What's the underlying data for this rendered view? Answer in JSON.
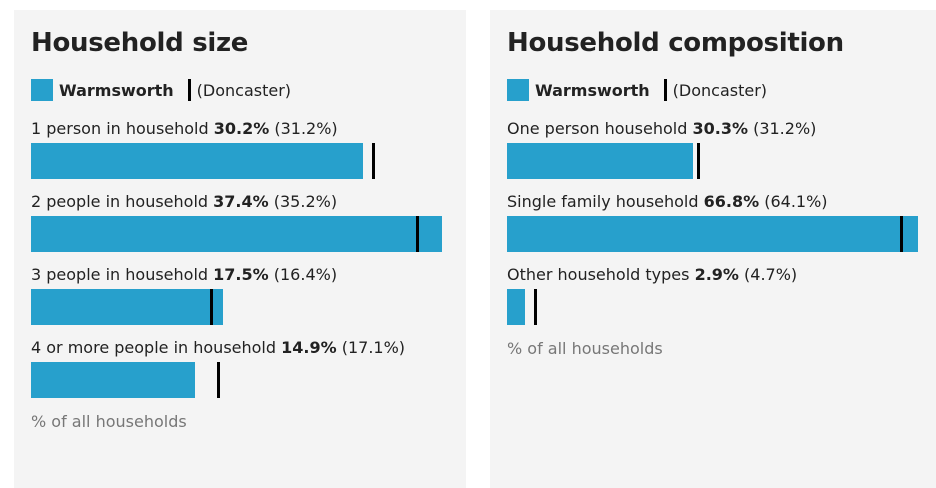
{
  "chart_data": [
    {
      "type": "bar",
      "title": "Household size",
      "categories": [
        "1 person in household",
        "2 people in household",
        "3 people in household",
        "4 or more people in household"
      ],
      "series": [
        {
          "name": "Warmsworth",
          "color": "#27a0cc",
          "values": [
            30.2,
            37.4,
            17.5,
            14.9
          ],
          "value_labels": [
            "30.2%",
            "37.4%",
            "17.5%",
            "14.9%"
          ]
        },
        {
          "name": "(Doncaster)",
          "color": "#000000",
          "values": [
            31.2,
            35.2,
            16.4,
            17.1
          ],
          "value_labels": [
            "(31.2%)",
            "(35.2%)",
            "(16.4%)",
            "(17.1%)"
          ]
        }
      ],
      "axis_label": "% of all households"
    },
    {
      "type": "bar",
      "title": "Household composition",
      "categories": [
        "One person household",
        "Single family household",
        "Other household types"
      ],
      "series": [
        {
          "name": "Warmsworth",
          "color": "#27a0cc",
          "values": [
            30.3,
            66.8,
            2.9
          ],
          "value_labels": [
            "30.3%",
            "66.8%",
            "2.9%"
          ]
        },
        {
          "name": "(Doncaster)",
          "color": "#000000",
          "values": [
            31.2,
            64.1,
            4.7
          ],
          "value_labels": [
            "(31.2%)",
            "(64.1%)",
            "(4.7%)"
          ]
        }
      ],
      "axis_label": "% of all households"
    }
  ]
}
